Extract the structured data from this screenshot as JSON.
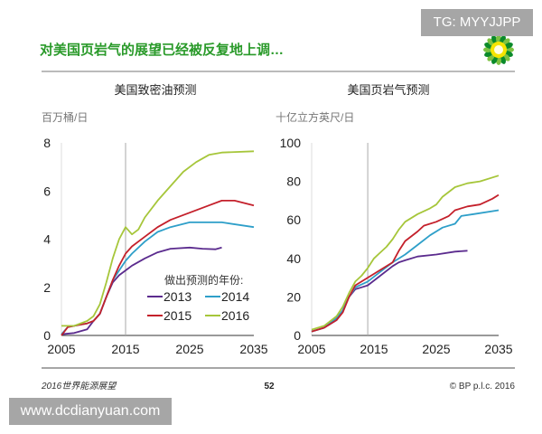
{
  "header": {
    "title": "对美国页岩气的展望已经被反复地上调…",
    "title_color": "#2a9a2a",
    "logo": "bp-helios-logo"
  },
  "watermarks": {
    "top": "TG: MYYJJPP",
    "bottom": "www.dcdianyuan.com"
  },
  "footer": {
    "left": "2016世界能源展望",
    "page": "52",
    "right": "© BP p.l.c. 2016"
  },
  "legend": {
    "title": "做出预测的年份:",
    "placement": "bottom-right of left chart"
  },
  "chart_data": [
    {
      "type": "line",
      "title": "美国致密油预测",
      "ylabel": "百万桶/日",
      "xlim": [
        2005,
        2035
      ],
      "ylim": [
        0,
        8
      ],
      "xticks": [
        2005,
        2015,
        2025,
        2035
      ],
      "yticks": [
        0,
        2,
        4,
        6,
        8
      ],
      "reference_line_x": 2015,
      "grid": false,
      "series": [
        {
          "name": "2013",
          "color": "#5b2b8e",
          "x": [
            2005,
            2007,
            2009,
            2010,
            2011,
            2012,
            2013,
            2014,
            2015,
            2016,
            2018,
            2020,
            2022,
            2025,
            2027,
            2029,
            2030
          ],
          "y": [
            0.05,
            0.1,
            0.25,
            0.6,
            0.9,
            1.6,
            2.2,
            2.5,
            2.7,
            2.9,
            3.2,
            3.45,
            3.6,
            3.65,
            3.6,
            3.58,
            3.65
          ]
        },
        {
          "name": "2014",
          "color": "#2e9fc9",
          "x": [
            2005,
            2006,
            2008,
            2009,
            2010,
            2011,
            2012,
            2013,
            2014,
            2015,
            2016,
            2018,
            2020,
            2022,
            2025,
            2030,
            2035
          ],
          "y": [
            0.05,
            0.35,
            0.45,
            0.5,
            0.6,
            0.9,
            1.6,
            2.3,
            2.7,
            3.1,
            3.4,
            3.9,
            4.3,
            4.5,
            4.7,
            4.7,
            4.5
          ]
        },
        {
          "name": "2015",
          "color": "#c4202b",
          "x": [
            2005,
            2006,
            2008,
            2009,
            2010,
            2011,
            2012,
            2013,
            2014,
            2015,
            2016,
            2018,
            2020,
            2022,
            2025,
            2028,
            2030,
            2032,
            2035
          ],
          "y": [
            0,
            0.35,
            0.45,
            0.5,
            0.6,
            0.9,
            1.6,
            2.3,
            2.9,
            3.4,
            3.7,
            4.1,
            4.5,
            4.8,
            5.1,
            5.4,
            5.6,
            5.6,
            5.4
          ]
        },
        {
          "name": "2016",
          "color": "#a6c63a",
          "x": [
            2005,
            2007,
            2009,
            2010,
            2011,
            2012,
            2013,
            2014,
            2015,
            2016,
            2017,
            2018,
            2020,
            2022,
            2024,
            2026,
            2028,
            2030,
            2035
          ],
          "y": [
            0.4,
            0.4,
            0.6,
            0.8,
            1.3,
            2.2,
            3.2,
            4.0,
            4.5,
            4.2,
            4.4,
            4.9,
            5.6,
            6.2,
            6.8,
            7.2,
            7.5,
            7.6,
            7.65
          ]
        }
      ]
    },
    {
      "type": "line",
      "title": "美国页岩气预测",
      "ylabel": "十亿立方英尺/日",
      "xlim": [
        2005,
        2035
      ],
      "ylim": [
        0,
        100
      ],
      "xticks": [
        2005,
        2015,
        2025,
        2035
      ],
      "yticks": [
        0,
        20,
        40,
        60,
        80,
        100
      ],
      "reference_line_x": 2014,
      "grid": false,
      "series": [
        {
          "name": "2013",
          "color": "#5b2b8e",
          "x": [
            2005,
            2007,
            2009,
            2010,
            2011,
            2012,
            2013,
            2014,
            2016,
            2018,
            2019,
            2020,
            2022,
            2025,
            2028,
            2030
          ],
          "y": [
            2,
            4,
            8,
            13,
            20,
            24,
            25,
            26,
            31,
            36,
            38,
            39,
            41,
            42,
            43.5,
            44
          ]
        },
        {
          "name": "2014",
          "color": "#2e9fc9",
          "x": [
            2005,
            2007,
            2009,
            2010,
            2011,
            2012,
            2014,
            2016,
            2018,
            2020,
            2022,
            2024,
            2026,
            2028,
            2029,
            2031,
            2035
          ],
          "y": [
            2,
            4,
            9,
            13,
            20,
            25,
            28,
            33,
            38,
            42,
            47,
            52,
            56,
            58,
            62,
            63,
            65
          ]
        },
        {
          "name": "2015",
          "color": "#c4202b",
          "x": [
            2005,
            2007,
            2009,
            2010,
            2011,
            2012,
            2013,
            2014,
            2016,
            2018,
            2019,
            2020,
            2022,
            2023,
            2025,
            2027,
            2028,
            2030,
            2032,
            2034,
            2035
          ],
          "y": [
            2,
            4,
            8,
            12,
            20,
            26,
            28,
            30,
            34,
            38,
            44,
            49,
            54,
            57,
            59,
            62,
            65,
            67,
            68,
            71,
            73
          ]
        },
        {
          "name": "2016",
          "color": "#a6c63a",
          "x": [
            2005,
            2007,
            2009,
            2010,
            2011,
            2012,
            2013,
            2014,
            2015,
            2016,
            2017,
            2018,
            2019,
            2020,
            2022,
            2024,
            2025,
            2026,
            2028,
            2030,
            2032,
            2035
          ],
          "y": [
            3,
            5,
            10,
            15,
            22,
            28,
            31,
            35,
            40,
            43,
            46,
            50,
            55,
            59,
            63,
            66,
            68,
            72,
            77,
            79,
            80,
            83
          ]
        }
      ]
    }
  ]
}
